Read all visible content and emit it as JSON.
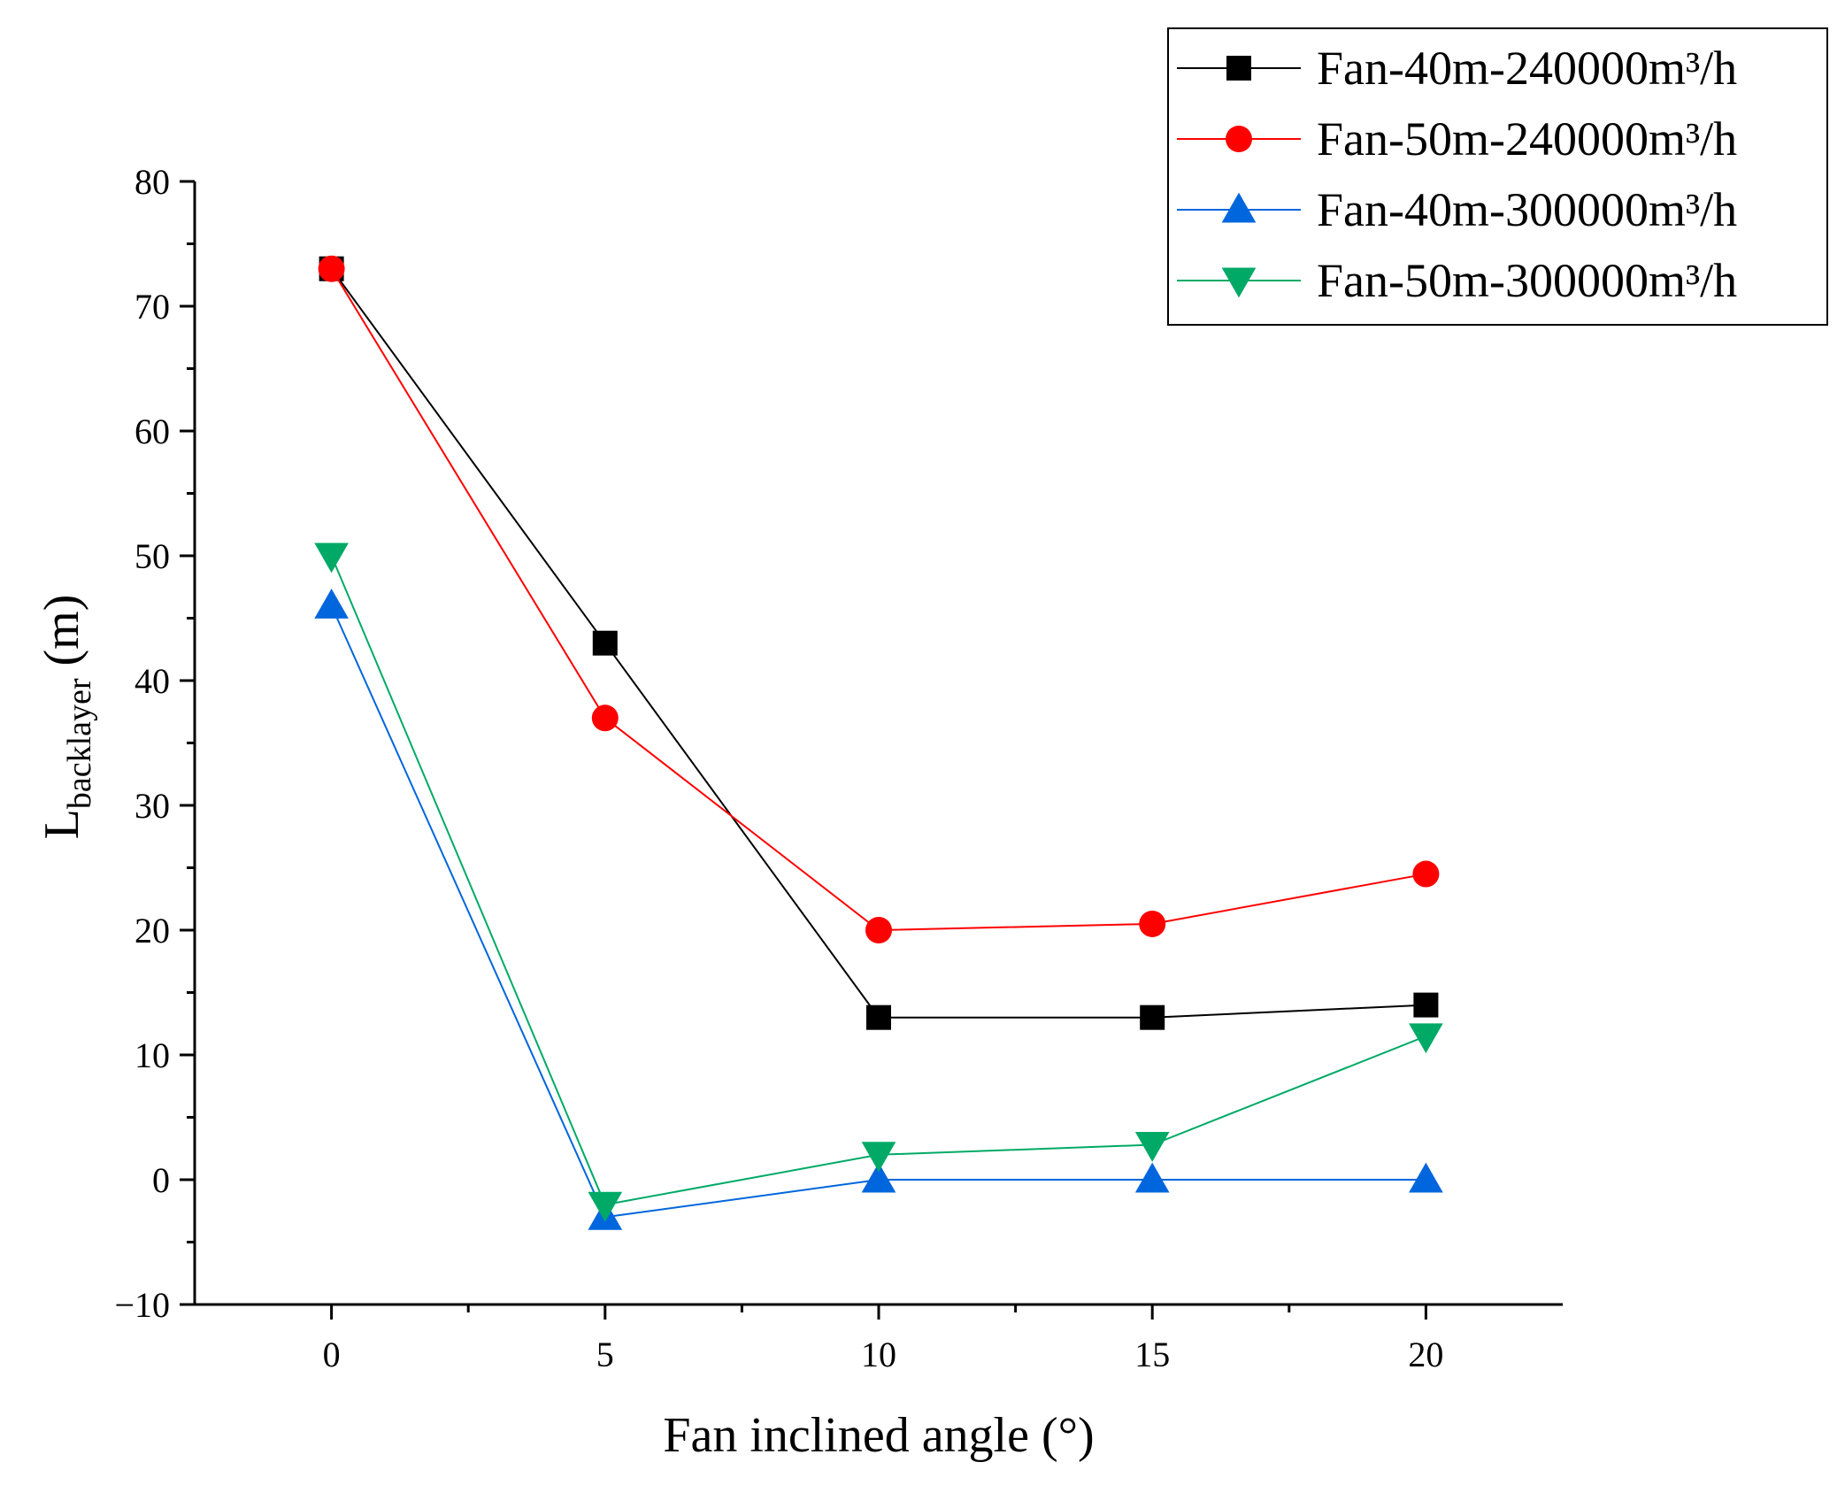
{
  "chart_data": {
    "type": "line",
    "title": "",
    "xlabel": "Fan inclined angle (°)",
    "ylabel": {
      "main": "L",
      "subscript": "backlayer",
      "unit": " (m)"
    },
    "x": [
      0,
      5,
      10,
      15,
      20
    ],
    "xlim": [
      -2.5,
      22.5
    ],
    "ylim": [
      -10,
      80
    ],
    "xticks": [
      0,
      5,
      10,
      15,
      20
    ],
    "yticks": [
      -10,
      0,
      10,
      20,
      30,
      40,
      50,
      60,
      70,
      80
    ],
    "ytick_labels": [
      "−10",
      "0",
      "10",
      "20",
      "30",
      "40",
      "50",
      "60",
      "70",
      "80"
    ],
    "grid": false,
    "legend_position": "top-right",
    "series": [
      {
        "name": "Fan-40m-240000m³/h",
        "marker": "square",
        "color": "#000000",
        "values": [
          73,
          43,
          13,
          13,
          14
        ]
      },
      {
        "name": "Fan-50m-240000m³/h",
        "marker": "circle",
        "color": "#ff0000",
        "values": [
          73,
          37,
          20,
          20.5,
          24.5
        ]
      },
      {
        "name": "Fan-40m-300000m³/h",
        "marker": "triangle-up",
        "color": "#0066dd",
        "values": [
          46,
          -3,
          0,
          0,
          0
        ]
      },
      {
        "name": "Fan-50m-300000m³/h",
        "marker": "triangle-down",
        "color": "#00aa66",
        "values": [
          50,
          -2,
          2,
          2.8,
          11.5
        ]
      }
    ]
  }
}
